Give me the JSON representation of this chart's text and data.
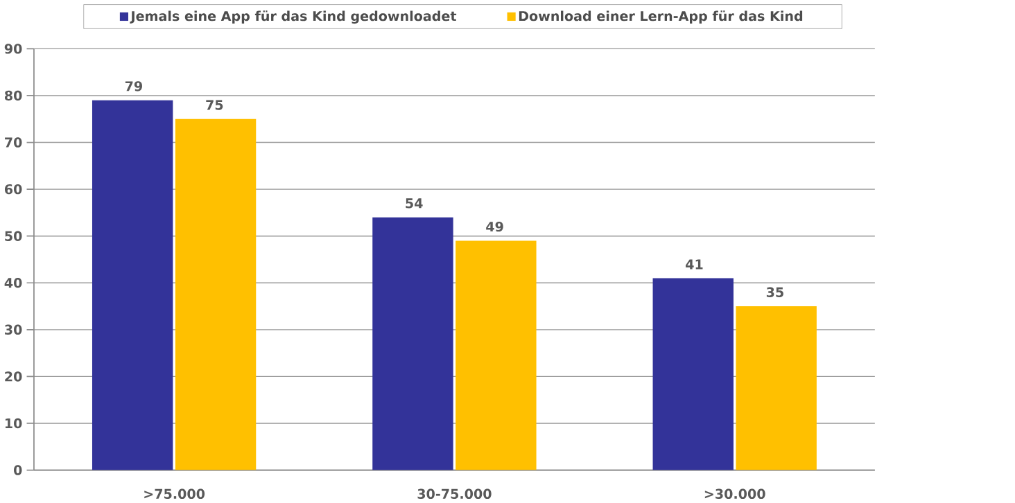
{
  "chart_data": {
    "type": "bar",
    "categories": [
      ">75.000",
      "30-75.000",
      ">30.000"
    ],
    "series": [
      {
        "name": "Jemals eine App für das Kind gedownloadet",
        "color": "#333399",
        "values": [
          79,
          54,
          41
        ]
      },
      {
        "name": "Download einer Lern-App für das Kind",
        "color": "#ffc000",
        "values": [
          75,
          49,
          35
        ]
      }
    ],
    "ylim": [
      0,
      90
    ],
    "yticks": [
      0,
      10,
      20,
      30,
      40,
      50,
      60,
      70,
      80,
      90
    ],
    "grid": "y",
    "legend": "top",
    "data_labels": true
  }
}
